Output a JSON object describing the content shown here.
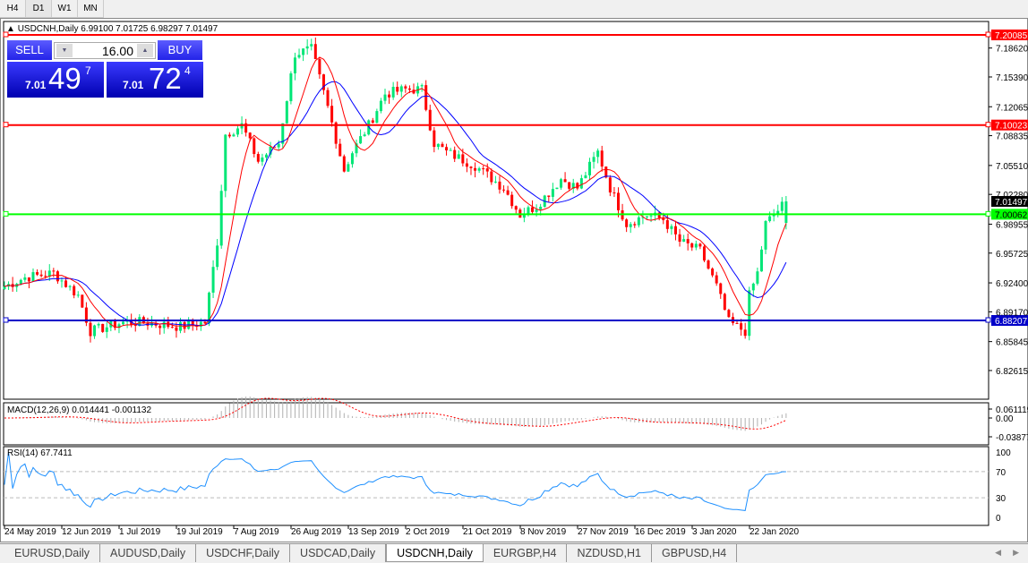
{
  "timeframes": [
    "H4",
    "D1",
    "W1",
    "MN"
  ],
  "active_timeframe": "D1",
  "chart": {
    "title": "USDCNH,Daily  6.99100 7.01725 6.98297 7.01497",
    "symbol": "USDCNH",
    "period": "Daily",
    "open": 6.991,
    "high": 7.01725,
    "low": 6.98297,
    "close": 7.01497
  },
  "trade_panel": {
    "sell_label": "SELL",
    "buy_label": "BUY",
    "lot": "16.00",
    "sell_prefix": "7.01",
    "sell_big": "49",
    "sell_sup": "7",
    "buy_prefix": "7.01",
    "buy_big": "72",
    "buy_sup": "4"
  },
  "price_axis": [
    "7.18620",
    "7.15390",
    "7.12065",
    "7.08835",
    "7.05510",
    "7.02280",
    "6.98955",
    "6.95725",
    "6.92400",
    "6.89170",
    "6.85845",
    "6.82615"
  ],
  "hlines": [
    {
      "price": 7.20085,
      "label": "7.20085",
      "color": "#ff0000"
    },
    {
      "price": 7.10023,
      "label": "7.10023",
      "color": "#ff0000"
    },
    {
      "price": 7.00062,
      "label": "7.00062",
      "color": "#00ff00"
    },
    {
      "price": 6.88207,
      "label": "6.88207",
      "color": "#0000c8"
    }
  ],
  "current_price_label": "7.01497",
  "colors": {
    "bull": "#00e676",
    "bear": "#ff0000",
    "ma_fast": "#ff0000",
    "ma_slow": "#0000ff",
    "rsi": "#1e90ff"
  },
  "price_anchors": [
    [
      0,
      6.92
    ],
    [
      5,
      6.93
    ],
    [
      12,
      6.935
    ],
    [
      18,
      6.91
    ],
    [
      21,
      6.87
    ],
    [
      25,
      6.875
    ],
    [
      29,
      6.88
    ],
    [
      34,
      6.88
    ],
    [
      43,
      6.875
    ],
    [
      49,
      6.88
    ],
    [
      52,
      6.97
    ],
    [
      54,
      7.09
    ],
    [
      58,
      7.1
    ],
    [
      62,
      7.06
    ],
    [
      67,
      7.08
    ],
    [
      71,
      7.18
    ],
    [
      75,
      7.185
    ],
    [
      79,
      7.12
    ],
    [
      83,
      7.05
    ],
    [
      85,
      7.07
    ],
    [
      89,
      7.1
    ],
    [
      93,
      7.135
    ],
    [
      98,
      7.14
    ],
    [
      102,
      7.14
    ],
    [
      105,
      7.08
    ],
    [
      108,
      7.07
    ],
    [
      115,
      7.055
    ],
    [
      122,
      7.03
    ],
    [
      126,
      7.0
    ],
    [
      130,
      7.01
    ],
    [
      136,
      7.04
    ],
    [
      140,
      7.03
    ],
    [
      145,
      7.07
    ],
    [
      148,
      7.03
    ],
    [
      152,
      6.99
    ],
    [
      157,
      7.0
    ],
    [
      161,
      6.995
    ],
    [
      165,
      6.97
    ],
    [
      170,
      6.96
    ],
    [
      174,
      6.92
    ],
    [
      177,
      6.88
    ],
    [
      181,
      6.87
    ],
    [
      182,
      6.91
    ],
    [
      184,
      6.935
    ],
    [
      186,
      6.99
    ],
    [
      189,
      7.005
    ],
    [
      191,
      7.01497
    ]
  ],
  "macd": {
    "label": "MACD(12,26,9) 0.014441 -0.001132",
    "axis": [
      "0.061119",
      "0.00",
      "-0.03877"
    ]
  },
  "rsi": {
    "label": "RSI(14) 67.7411",
    "axis": [
      "100",
      "70",
      "30",
      "0"
    ]
  },
  "dates": [
    "24 May 2019",
    "12 Jun 2019",
    "1 Jul 2019",
    "19 Jul 2019",
    "7 Aug 2019",
    "26 Aug 2019",
    "13 Sep 2019",
    "2 Oct 2019",
    "21 Oct 2019",
    "8 Nov 2019",
    "27 Nov 2019",
    "16 Dec 2019",
    "3 Jan 2020",
    "22 Jan 2020"
  ],
  "tabs": [
    "EURUSD,Daily",
    "AUDUSD,Daily",
    "USDCHF,Daily",
    "USDCAD,Daily",
    "USDCNH,Daily",
    "EURGBP,H4",
    "NZDUSD,H1",
    "GBPUSD,H4"
  ],
  "active_tab": "USDCNH,Daily"
}
